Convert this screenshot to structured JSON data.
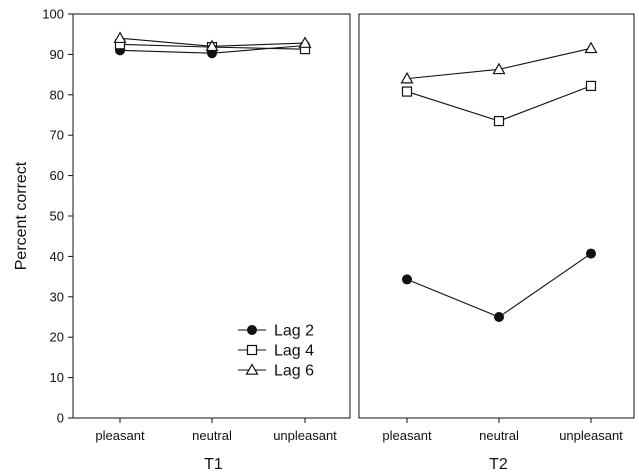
{
  "chart_data": [
    {
      "type": "line",
      "panel_label": "T1",
      "ylabel": "Percent correct",
      "categories": [
        "pleasant",
        "neutral",
        "unpleasant"
      ],
      "ylim": [
        0,
        100
      ],
      "yticks": [
        0,
        10,
        20,
        30,
        40,
        50,
        60,
        70,
        80,
        90,
        100
      ],
      "series": [
        {
          "name": "Lag 2",
          "marker": "filled-circle",
          "values": [
            91.0,
            90.3,
            92.2
          ]
        },
        {
          "name": "Lag 4",
          "marker": "open-square",
          "values": [
            92.5,
            91.8,
            91.3
          ]
        },
        {
          "name": "Lag 6",
          "marker": "open-triangle",
          "values": [
            94.0,
            92.0,
            92.8
          ]
        }
      ],
      "legend": {
        "position": "bottom-right"
      }
    },
    {
      "type": "line",
      "panel_label": "T2",
      "categories": [
        "pleasant",
        "neutral",
        "unpleasant"
      ],
      "ylim": [
        0,
        100
      ],
      "series": [
        {
          "name": "Lag 2",
          "marker": "filled-circle",
          "values": [
            34.3,
            25.0,
            40.7
          ]
        },
        {
          "name": "Lag 4",
          "marker": "open-square",
          "values": [
            80.8,
            73.5,
            82.2
          ]
        },
        {
          "name": "Lag 6",
          "marker": "open-triangle",
          "values": [
            84.0,
            86.3,
            91.5
          ]
        }
      ]
    }
  ],
  "colors": {
    "line": "#111111",
    "background": "#ffffff"
  }
}
